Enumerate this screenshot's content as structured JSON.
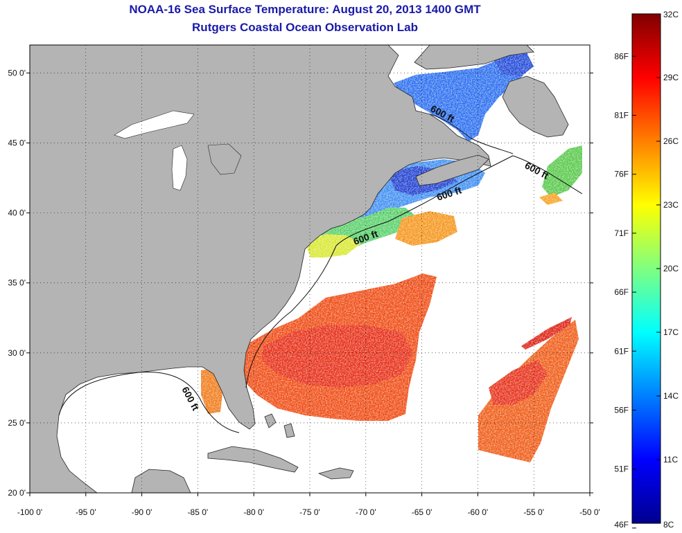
{
  "title": "NOAA-16 Sea Surface Temperature:  August 20, 2013 1400 GMT",
  "subtitle": "Rutgers Coastal Ocean Observation Lab",
  "axes": {
    "x_ticks": [
      "-100 0'",
      "-95 0'",
      "-90 0'",
      "-85 0'",
      "-80 0'",
      "-75 0'",
      "-70 0'",
      "-65 0'",
      "-60 0'",
      "-55 0'",
      "-50 0'"
    ],
    "y_ticks": [
      "50 0'",
      "45 0'",
      "40 0'",
      "35 0'",
      "30 0'",
      "25 0'",
      "20 0'"
    ],
    "lon_range": [
      -100,
      -50
    ],
    "lat_range": [
      20,
      52
    ],
    "grid": "dotted"
  },
  "contour_label": "600 ft",
  "colorbar": {
    "min_c": 8,
    "max_c": 32,
    "celsius_labels": [
      "32C",
      "29C",
      "26C",
      "23C",
      "20C",
      "17C",
      "14C",
      "11C",
      "8C"
    ],
    "fahrenheit_labels": [
      "86F",
      "81F",
      "76F",
      "71F",
      "66F",
      "61F",
      "56F",
      "51F",
      "46F"
    ]
  },
  "colors": {
    "land": "#b4b4b4",
    "ocean_no_data": "#ffffff",
    "title": "#1a1aa8"
  }
}
